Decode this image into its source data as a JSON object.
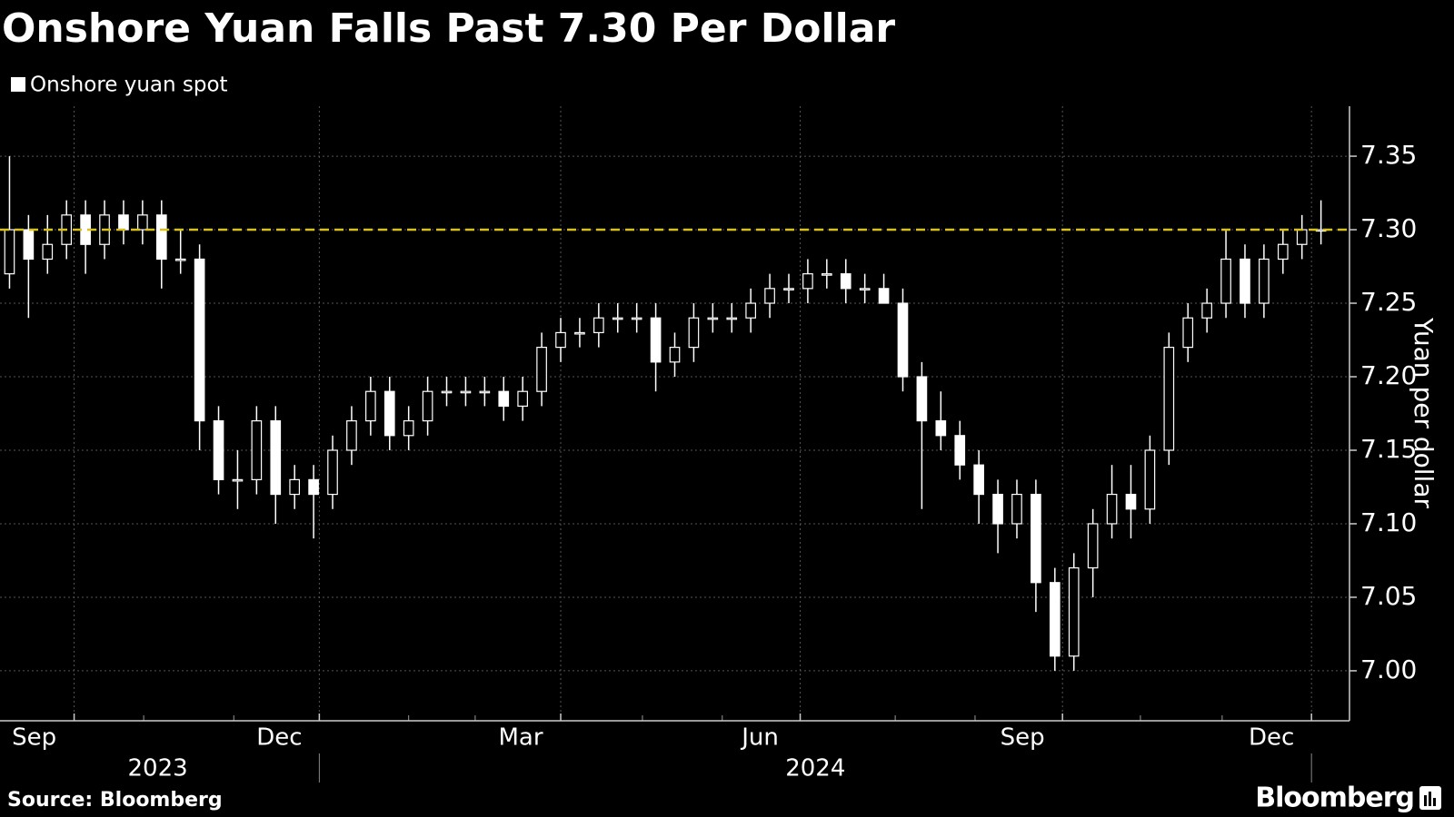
{
  "chart_data": {
    "type": "candlestick",
    "title": "Onshore Yuan Falls Past 7.30 Per Dollar",
    "y_axis_label": "Yuan per dollar",
    "source": "Source: Bloomberg",
    "brand": "Bloomberg",
    "legend": "top-left",
    "grid": true,
    "hline": 7.3,
    "hline_color": "#d6c21c",
    "x": [
      0,
      1,
      2,
      3,
      4,
      5,
      6,
      7,
      8,
      9,
      10,
      11,
      12,
      13,
      14,
      15,
      16,
      17,
      18,
      19,
      20,
      21,
      22,
      23,
      24,
      25,
      26,
      27,
      28,
      29,
      30,
      31,
      32,
      33,
      34,
      35,
      36,
      37,
      38,
      39,
      40,
      41,
      42,
      43,
      44,
      45,
      46,
      47,
      48,
      49,
      50,
      51,
      52,
      53,
      54,
      55,
      56,
      57,
      58,
      59,
      60,
      61,
      62,
      63,
      64,
      65,
      66,
      67,
      68,
      69
    ],
    "xlim": [
      -0.5,
      70.5
    ],
    "xticks": [
      {
        "value": 3.4,
        "label": "Sep"
      },
      {
        "value": 16.3,
        "label": "Dec"
      },
      {
        "value": 29,
        "label": "Mar"
      },
      {
        "value": 41.6,
        "label": "Jun"
      },
      {
        "value": 55.4,
        "label": "Sep"
      },
      {
        "value": 68.5,
        "label": "Dec"
      }
    ],
    "xminor_ticks": [
      7.06,
      11.8,
      21,
      24.5,
      33.3,
      37.5,
      46.6,
      50.8,
      59.5,
      63.8
    ],
    "year_labels": [
      {
        "value": 7.8,
        "label": "2023"
      },
      {
        "value": 42.4,
        "label": "2024"
      }
    ],
    "year_dividers": [
      16.3,
      68.5
    ],
    "ylim": [
      6.966,
      7.384
    ],
    "yticks": [
      {
        "value": 7.0,
        "label": "7.00"
      },
      7.05,
      {
        "value": 7.1,
        "label": "7.10"
      },
      7.15,
      {
        "value": 7.2,
        "label": "7.20"
      },
      7.25,
      {
        "value": 7.3,
        "label": "7.30"
      },
      7.35
    ],
    "series": [
      {
        "name": "Onshore yuan spot",
        "color": "#ffffff",
        "open": [
          7.27,
          7.3,
          7.28,
          7.29,
          7.31,
          7.29,
          7.31,
          7.3,
          7.31,
          7.28,
          7.28,
          7.17,
          7.13,
          7.13,
          7.17,
          7.12,
          7.13,
          7.12,
          7.15,
          7.17,
          7.19,
          7.16,
          7.17,
          7.19,
          7.19,
          7.19,
          7.19,
          7.18,
          7.19,
          7.22,
          7.23,
          7.23,
          7.24,
          7.24,
          7.24,
          7.21,
          7.22,
          7.24,
          7.24,
          7.24,
          7.25,
          7.26,
          7.26,
          7.27,
          7.27,
          7.26,
          7.26,
          7.25,
          7.2,
          7.17,
          7.16,
          7.14,
          7.12,
          7.1,
          7.12,
          7.06,
          7.01,
          7.07,
          7.1,
          7.12,
          7.11,
          7.15,
          7.22,
          7.24,
          7.25,
          7.28,
          7.25,
          7.28,
          7.29,
          7.3
        ],
        "high": [
          7.35,
          7.31,
          7.31,
          7.32,
          7.32,
          7.32,
          7.32,
          7.32,
          7.32,
          7.3,
          7.29,
          7.18,
          7.15,
          7.18,
          7.18,
          7.14,
          7.14,
          7.16,
          7.18,
          7.2,
          7.2,
          7.18,
          7.2,
          7.2,
          7.2,
          7.2,
          7.2,
          7.2,
          7.23,
          7.24,
          7.24,
          7.25,
          7.25,
          7.25,
          7.25,
          7.23,
          7.25,
          7.25,
          7.25,
          7.26,
          7.27,
          7.27,
          7.28,
          7.28,
          7.28,
          7.27,
          7.27,
          7.26,
          7.21,
          7.19,
          7.17,
          7.15,
          7.13,
          7.13,
          7.13,
          7.07,
          7.08,
          7.11,
          7.14,
          7.14,
          7.16,
          7.23,
          7.25,
          7.26,
          7.3,
          7.29,
          7.29,
          7.3,
          7.31,
          7.32
        ],
        "low": [
          7.26,
          7.24,
          7.27,
          7.28,
          7.27,
          7.28,
          7.29,
          7.29,
          7.26,
          7.27,
          7.15,
          7.12,
          7.11,
          7.12,
          7.1,
          7.11,
          7.09,
          7.11,
          7.14,
          7.16,
          7.15,
          7.15,
          7.16,
          7.18,
          7.18,
          7.18,
          7.17,
          7.17,
          7.18,
          7.21,
          7.22,
          7.22,
          7.23,
          7.23,
          7.19,
          7.2,
          7.21,
          7.23,
          7.23,
          7.23,
          7.24,
          7.25,
          7.25,
          7.26,
          7.25,
          7.25,
          7.25,
          7.19,
          7.11,
          7.15,
          7.13,
          7.1,
          7.08,
          7.09,
          7.04,
          7.0,
          7.0,
          7.05,
          7.09,
          7.09,
          7.1,
          7.14,
          7.21,
          7.23,
          7.24,
          7.24,
          7.24,
          7.27,
          7.28,
          7.29
        ],
        "close": [
          7.3,
          7.28,
          7.29,
          7.31,
          7.29,
          7.31,
          7.3,
          7.31,
          7.28,
          7.28,
          7.17,
          7.13,
          7.13,
          7.17,
          7.12,
          7.13,
          7.12,
          7.15,
          7.17,
          7.19,
          7.16,
          7.17,
          7.19,
          7.19,
          7.19,
          7.19,
          7.18,
          7.19,
          7.22,
          7.23,
          7.23,
          7.24,
          7.24,
          7.24,
          7.21,
          7.22,
          7.24,
          7.24,
          7.24,
          7.25,
          7.26,
          7.26,
          7.27,
          7.27,
          7.26,
          7.26,
          7.25,
          7.2,
          7.17,
          7.16,
          7.14,
          7.12,
          7.1,
          7.12,
          7.06,
          7.01,
          7.07,
          7.1,
          7.12,
          7.11,
          7.15,
          7.22,
          7.24,
          7.25,
          7.28,
          7.25,
          7.28,
          7.29,
          7.3,
          7.3
        ]
      }
    ]
  }
}
